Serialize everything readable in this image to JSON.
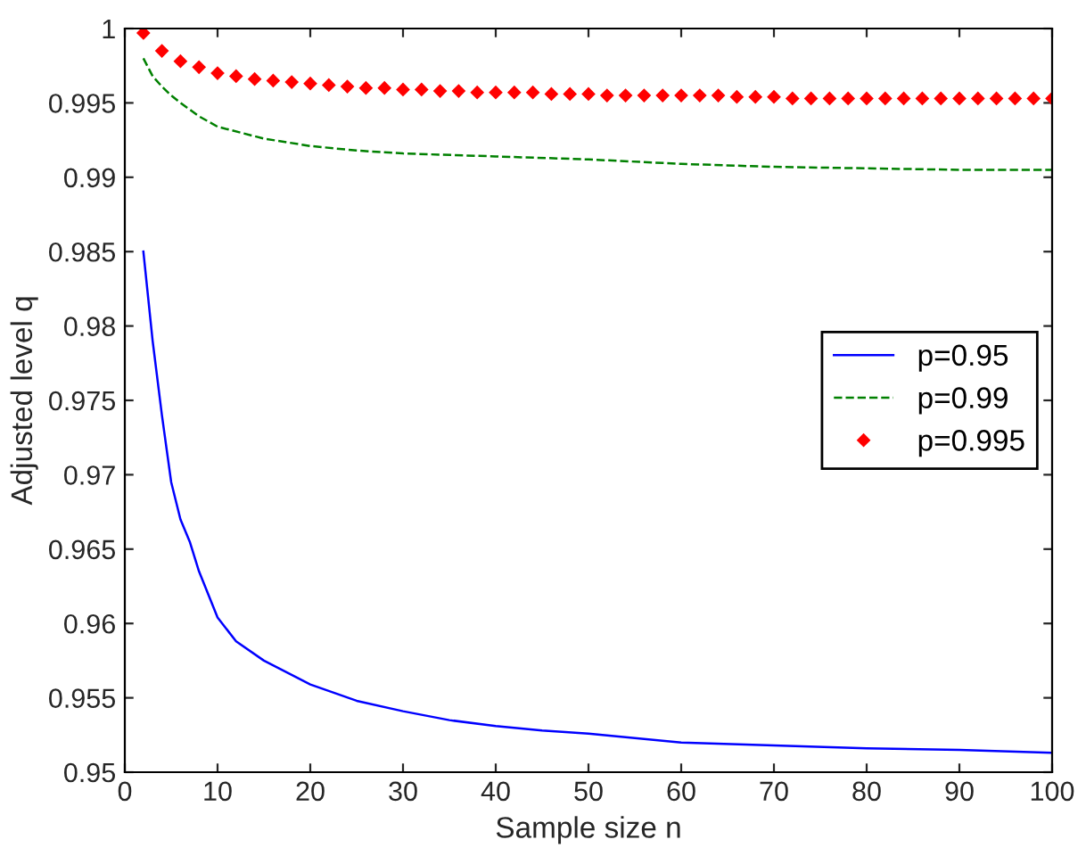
{
  "chart_data": {
    "type": "line",
    "xlabel": "Sample size n",
    "ylabel": "Adjusted level q",
    "xlim": [
      0,
      100
    ],
    "ylim": [
      0.95,
      1
    ],
    "xticks": [
      0,
      10,
      20,
      30,
      40,
      50,
      60,
      70,
      80,
      90,
      100
    ],
    "yticks": [
      0.95,
      0.955,
      0.96,
      0.965,
      0.97,
      0.975,
      0.98,
      0.985,
      0.99,
      0.995,
      1
    ],
    "legend": "center right",
    "grid": false,
    "series": [
      {
        "name": "p=0.95",
        "color": "#0000ff",
        "line_style": "solid",
        "marker": "none",
        "x": [
          2,
          3,
          4,
          5,
          6,
          7,
          8,
          10,
          12,
          15,
          20,
          25,
          30,
          35,
          40,
          45,
          50,
          60,
          70,
          80,
          90,
          100
        ],
        "values": [
          0.985,
          0.979,
          0.974,
          0.9695,
          0.967,
          0.9655,
          0.9635,
          0.9604,
          0.9588,
          0.9575,
          0.9559,
          0.9548,
          0.9541,
          0.9535,
          0.9531,
          0.9528,
          0.9526,
          0.952,
          0.9518,
          0.9516,
          0.9515,
          0.9513
        ]
      },
      {
        "name": "p=0.99",
        "color": "#008000",
        "line_style": "dashed",
        "marker": "none",
        "x": [
          2,
          3,
          4,
          5,
          6,
          8,
          10,
          15,
          20,
          25,
          30,
          40,
          50,
          60,
          70,
          80,
          90,
          100
        ],
        "values": [
          0.998,
          0.9968,
          0.9961,
          0.9955,
          0.995,
          0.9941,
          0.9934,
          0.9926,
          0.9921,
          0.9918,
          0.9916,
          0.9914,
          0.9912,
          0.9909,
          0.9907,
          0.9906,
          0.9905,
          0.9905
        ]
      },
      {
        "name": "p=0.995",
        "type": "scatter",
        "color": "#ff0000",
        "marker": "diamond",
        "x": [
          2,
          4,
          6,
          8,
          10,
          12,
          14,
          16,
          18,
          20,
          22,
          24,
          26,
          28,
          30,
          32,
          34,
          36,
          38,
          40,
          42,
          44,
          46,
          48,
          50,
          52,
          54,
          56,
          58,
          60,
          62,
          64,
          66,
          68,
          70,
          72,
          74,
          76,
          78,
          80,
          82,
          84,
          86,
          88,
          90,
          92,
          94,
          96,
          98,
          100
        ],
        "values": [
          0.9997,
          0.9985,
          0.9978,
          0.9974,
          0.997,
          0.9968,
          0.9966,
          0.9965,
          0.9964,
          0.9963,
          0.9962,
          0.9961,
          0.996,
          0.996,
          0.9959,
          0.9959,
          0.9958,
          0.9958,
          0.9957,
          0.9957,
          0.9957,
          0.9957,
          0.9956,
          0.9956,
          0.9956,
          0.9955,
          0.9955,
          0.9955,
          0.9955,
          0.9955,
          0.9955,
          0.9955,
          0.9954,
          0.9954,
          0.9954,
          0.9953,
          0.9953,
          0.9953,
          0.9953,
          0.9953,
          0.9953,
          0.9953,
          0.9953,
          0.9953,
          0.9953,
          0.9953,
          0.9953,
          0.9953,
          0.9953,
          0.9953
        ]
      }
    ]
  }
}
